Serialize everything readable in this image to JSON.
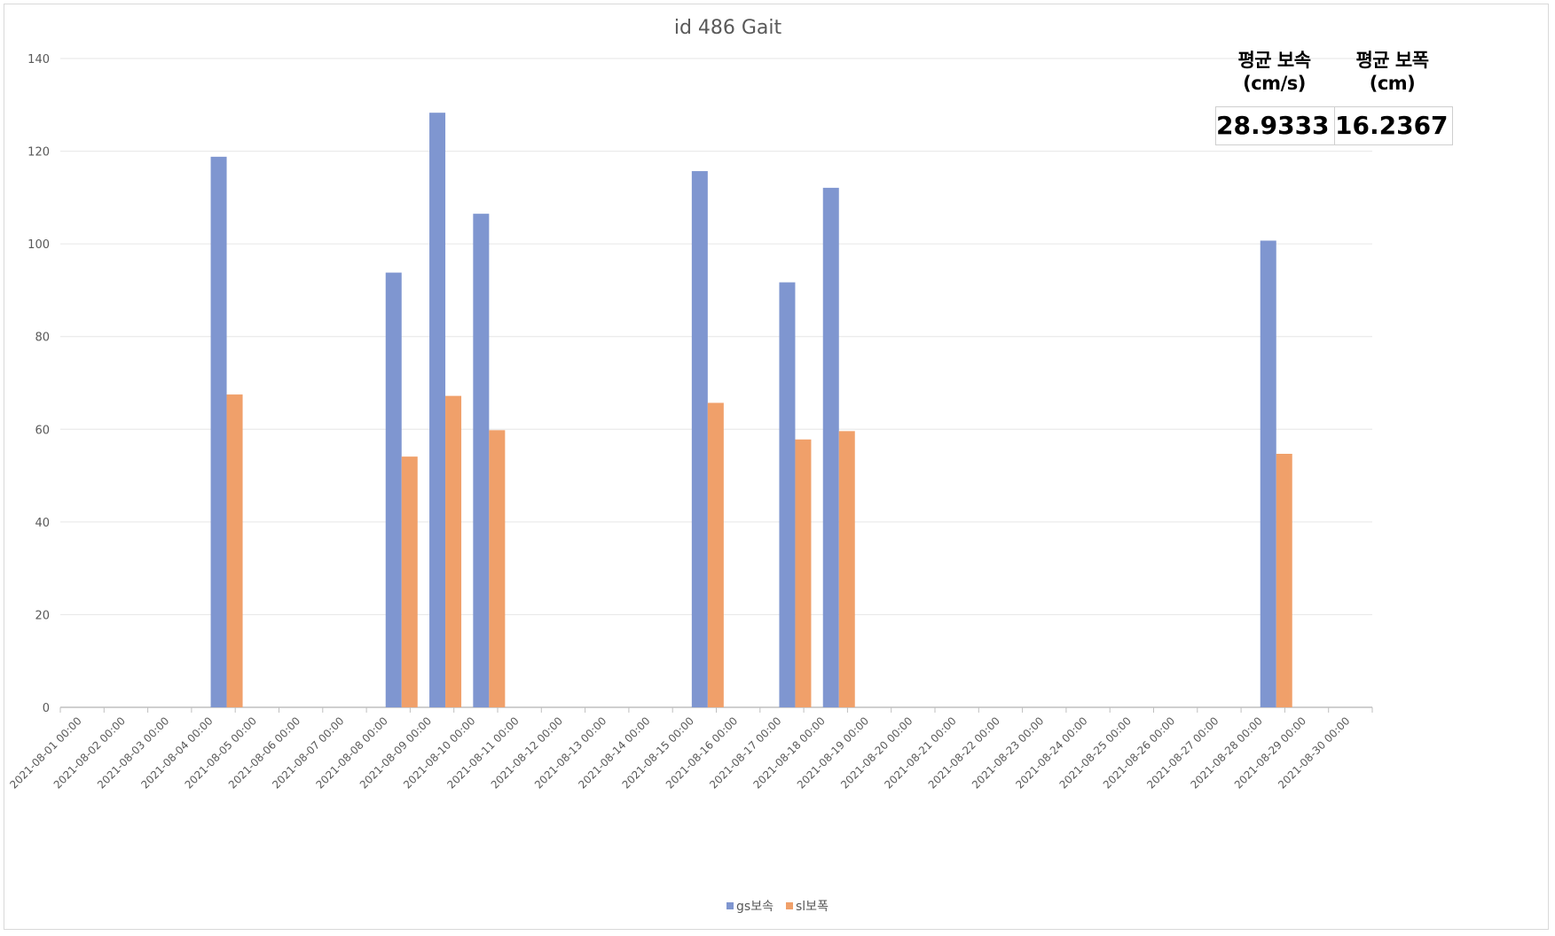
{
  "stats": {
    "headers": [
      "평균 보속(cm/s)",
      "평균 보폭(cm)"
    ],
    "values": [
      "28.9333",
      "16.2367"
    ]
  },
  "chart_data": {
    "type": "bar",
    "title": "id 486 Gait",
    "xlabel": "",
    "ylabel": "",
    "ylim": [
      0,
      140
    ],
    "yticks": [
      0,
      20,
      40,
      60,
      80,
      100,
      120,
      140
    ],
    "grid": true,
    "legend_position": "bottom",
    "categories": [
      "2021-08-01 00:00",
      "2021-08-02 00:00",
      "2021-08-03 00:00",
      "2021-08-04 00:00",
      "2021-08-05 00:00",
      "2021-08-06 00:00",
      "2021-08-07 00:00",
      "2021-08-08 00:00",
      "2021-08-09 00:00",
      "2021-08-10 00:00",
      "2021-08-11 00:00",
      "2021-08-12 00:00",
      "2021-08-13 00:00",
      "2021-08-14 00:00",
      "2021-08-15 00:00",
      "2021-08-16 00:00",
      "2021-08-17 00:00",
      "2021-08-18 00:00",
      "2021-08-19 00:00",
      "2021-08-20 00:00",
      "2021-08-21 00:00",
      "2021-08-22 00:00",
      "2021-08-23 00:00",
      "2021-08-24 00:00",
      "2021-08-25 00:00",
      "2021-08-26 00:00",
      "2021-08-27 00:00",
      "2021-08-28 00:00",
      "2021-08-29 00:00",
      "2021-08-30 00:00"
    ],
    "series": [
      {
        "name": "gs보속",
        "color": "#7f96d0",
        "points": [
          {
            "x": "2021-08-04 00:00",
            "y": 118.8
          },
          {
            "x": "2021-08-08 00:00",
            "y": 93.8
          },
          {
            "x": "2021-08-09 00:00",
            "y": 128.3
          },
          {
            "x": "2021-08-10 00:00",
            "y": 106.5
          },
          {
            "x": "2021-08-15 00:00",
            "y": 115.7
          },
          {
            "x": "2021-08-17 00:00",
            "y": 91.7
          },
          {
            "x": "2021-08-18 00:00",
            "y": 112.1
          },
          {
            "x": "2021-08-28 00:00",
            "y": 100.7
          }
        ]
      },
      {
        "name": "sl보폭",
        "color": "#f0a06a",
        "points": [
          {
            "x": "2021-08-04 00:00",
            "y": 67.5
          },
          {
            "x": "2021-08-08 00:00",
            "y": 54.1
          },
          {
            "x": "2021-08-09 00:00",
            "y": 67.2
          },
          {
            "x": "2021-08-10 00:00",
            "y": 59.8
          },
          {
            "x": "2021-08-15 00:00",
            "y": 65.7
          },
          {
            "x": "2021-08-17 00:00",
            "y": 57.8
          },
          {
            "x": "2021-08-18 00:00",
            "y": 59.6
          },
          {
            "x": "2021-08-28 00:00",
            "y": 54.7
          }
        ]
      }
    ]
  }
}
